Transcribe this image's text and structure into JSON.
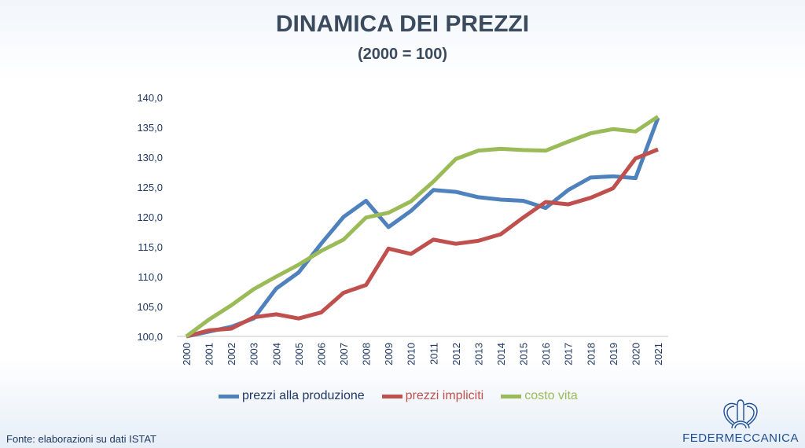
{
  "chart_data": {
    "type": "line",
    "title": "DINAMICA DEI PREZZI",
    "subtitle": "(2000 = 100)",
    "xlabel": "",
    "ylabel": "",
    "ylim": [
      100,
      140
    ],
    "yticks": [
      "100,0",
      "105,0",
      "110,0",
      "115,0",
      "120,0",
      "125,0",
      "130,0",
      "135,0",
      "140,0"
    ],
    "x": [
      "2000",
      "2001",
      "2002",
      "2003",
      "2004",
      "2005",
      "2006",
      "2007",
      "2008",
      "2009",
      "2010",
      "2011",
      "2012",
      "2013",
      "2014",
      "2015",
      "2016",
      "2017",
      "2018",
      "2019",
      "2020",
      "2021"
    ],
    "legend_position": "bottom",
    "series": [
      {
        "name": "prezzi alla produzione",
        "color": "#4f81bd",
        "values": [
          100,
          100.8,
          101.6,
          103,
          108,
          110.7,
          115.5,
          120,
          122.7,
          118.3,
          121,
          124.5,
          124.2,
          123.3,
          122.9,
          122.7,
          121.5,
          124.5,
          126.6,
          126.8,
          126.5,
          136.6
        ]
      },
      {
        "name": "prezzi impliciti",
        "color": "#c0504d",
        "values": [
          100,
          101,
          101.3,
          103.2,
          103.7,
          103,
          104,
          107.3,
          108.6,
          114.7,
          113.8,
          116.2,
          115.5,
          116,
          117.1,
          119.9,
          122.5,
          122.1,
          123.2,
          124.8,
          129.8,
          131.3
        ]
      },
      {
        "name": "costo vita",
        "color": "#9bbb59",
        "values": [
          100,
          102.8,
          105.2,
          107.9,
          110,
          112,
          114.3,
          116.2,
          119.9,
          120.7,
          122.6,
          125.9,
          129.7,
          131.1,
          131.4,
          131.2,
          131.1,
          132.6,
          134,
          134.7,
          134.3,
          136.8
        ]
      }
    ]
  },
  "source": "Fonte: elaborazioni su dati ISTAT",
  "logo_text": "FEDERMECCANICA"
}
